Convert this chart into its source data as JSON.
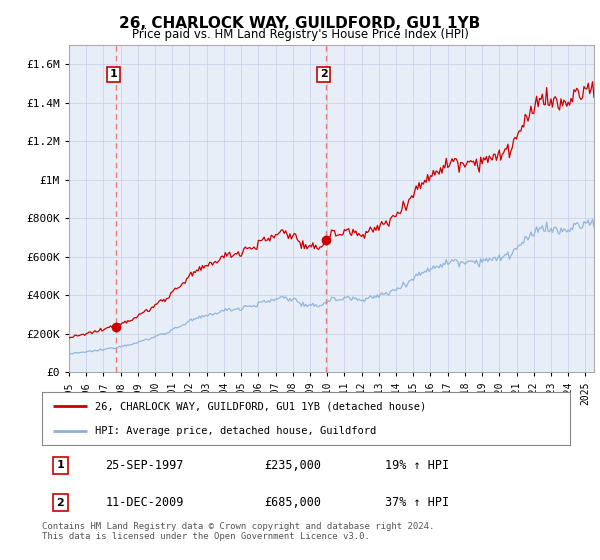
{
  "title": "26, CHARLOCK WAY, GUILDFORD, GU1 1YB",
  "subtitle": "Price paid vs. HM Land Registry's House Price Index (HPI)",
  "legend_line1": "26, CHARLOCK WAY, GUILDFORD, GU1 1YB (detached house)",
  "legend_line2": "HPI: Average price, detached house, Guildford",
  "table_row1": [
    "1",
    "25-SEP-1997",
    "£235,000",
    "19% ↑ HPI"
  ],
  "table_row2": [
    "2",
    "11-DEC-2009",
    "£685,000",
    "37% ↑ HPI"
  ],
  "footnote": "Contains HM Land Registry data © Crown copyright and database right 2024.\nThis data is licensed under the Open Government Licence v3.0.",
  "hpi_color": "#8ab0d8",
  "price_color": "#cc0000",
  "dashed_line_color": "#e87070",
  "marker_color": "#cc0000",
  "background_color": "#ffffff",
  "plot_bg_color": "#e8eef8",
  "grid_color": "#c8d4e8",
  "ylim": [
    0,
    1700000
  ],
  "yticks": [
    0,
    200000,
    400000,
    600000,
    800000,
    1000000,
    1200000,
    1400000,
    1600000
  ],
  "sale1_x": 1997.73,
  "sale1_y": 235000,
  "sale2_x": 2009.95,
  "sale2_y": 685000,
  "xmin": 1995.0,
  "xmax": 2025.5,
  "xticks": [
    1995,
    1996,
    1997,
    1998,
    1999,
    2000,
    2001,
    2002,
    2003,
    2004,
    2005,
    2006,
    2007,
    2008,
    2009,
    2010,
    2011,
    2012,
    2013,
    2014,
    2015,
    2016,
    2017,
    2018,
    2019,
    2020,
    2021,
    2022,
    2023,
    2024,
    2025
  ]
}
